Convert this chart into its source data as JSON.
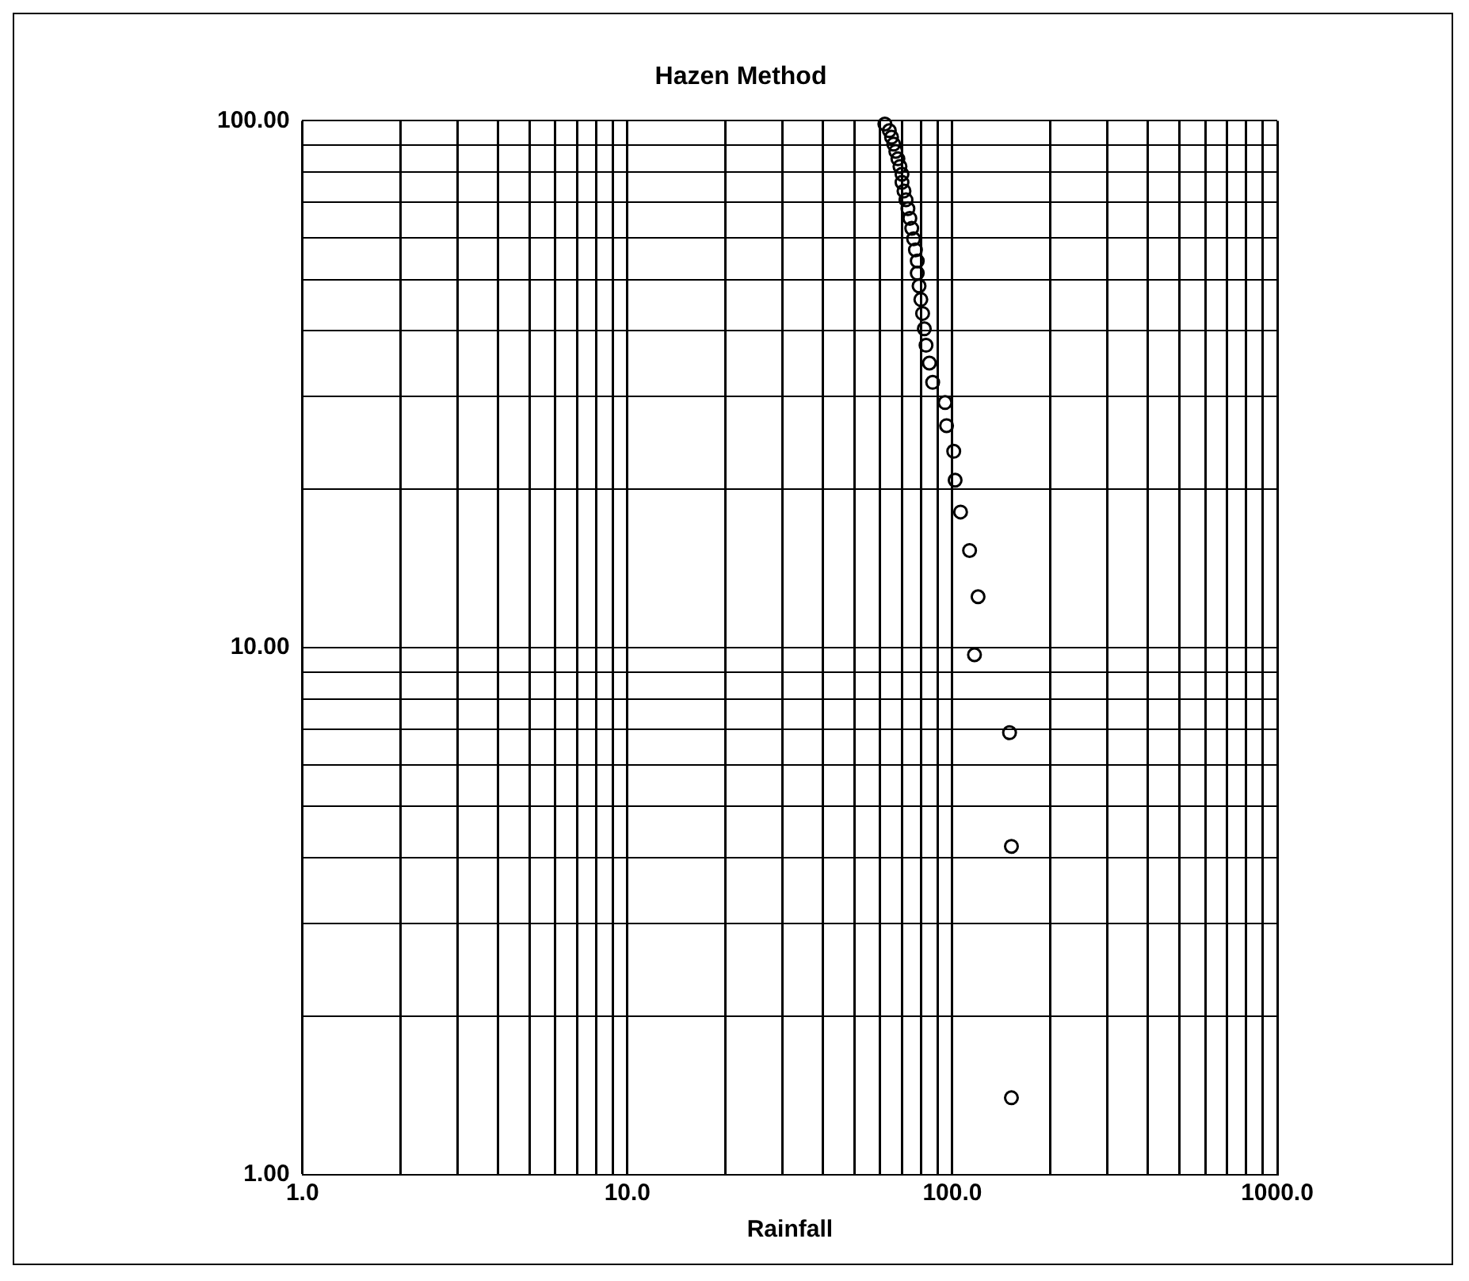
{
  "chart_data": {
    "type": "scatter",
    "title": "Hazen Method",
    "xlabel": "Rainfall",
    "log": "xy",
    "grid": true,
    "legend": false,
    "marker": "circle",
    "xlim": [
      1,
      1000
    ],
    "xticks": [
      {
        "value": 1,
        "label": "1.0"
      },
      {
        "value": 2,
        "label": null
      },
      {
        "value": 3,
        "label": null
      },
      {
        "value": 4,
        "label": null
      },
      {
        "value": 5,
        "label": null
      },
      {
        "value": 6,
        "label": null
      },
      {
        "value": 7,
        "label": null
      },
      {
        "value": 8,
        "label": null
      },
      {
        "value": 9,
        "label": null
      },
      {
        "value": 10,
        "label": "10.0"
      },
      {
        "value": 20,
        "label": null
      },
      {
        "value": 30,
        "label": null
      },
      {
        "value": 40,
        "label": null
      },
      {
        "value": 50,
        "label": null
      },
      {
        "value": 60,
        "label": null
      },
      {
        "value": 70,
        "label": null
      },
      {
        "value": 80,
        "label": null
      },
      {
        "value": 90,
        "label": null
      },
      {
        "value": 100,
        "label": "100.0"
      },
      {
        "value": 200,
        "label": null
      },
      {
        "value": 300,
        "label": null
      },
      {
        "value": 400,
        "label": null
      },
      {
        "value": 500,
        "label": null
      },
      {
        "value": 600,
        "label": null
      },
      {
        "value": 700,
        "label": null
      },
      {
        "value": 800,
        "label": null
      },
      {
        "value": 900,
        "label": null
      },
      {
        "value": 1000,
        "label": "1000.0"
      }
    ],
    "ylim": [
      1,
      100
    ],
    "yticks": [
      {
        "value": 1,
        "label": "1.00"
      },
      {
        "value": 2,
        "label": null
      },
      {
        "value": 3,
        "label": null
      },
      {
        "value": 4,
        "label": null
      },
      {
        "value": 5,
        "label": null
      },
      {
        "value": 6,
        "label": null
      },
      {
        "value": 7,
        "label": null
      },
      {
        "value": 8,
        "label": null
      },
      {
        "value": 9,
        "label": null
      },
      {
        "value": 10,
        "label": "10.00"
      },
      {
        "value": 20,
        "label": null
      },
      {
        "value": 30,
        "label": null
      },
      {
        "value": 40,
        "label": null
      },
      {
        "value": 50,
        "label": null
      },
      {
        "value": 60,
        "label": null
      },
      {
        "value": 70,
        "label": null
      },
      {
        "value": 80,
        "label": null
      },
      {
        "value": 90,
        "label": null
      },
      {
        "value": 100,
        "label": "100.00"
      }
    ],
    "series": [
      {
        "color": "#000000",
        "x": [
          152,
          152,
          150,
          117,
          120,
          113,
          106,
          102,
          101,
          96,
          95,
          87,
          85,
          83,
          82,
          81,
          80,
          79,
          78,
          78,
          77,
          76,
          75,
          74,
          73,
          72,
          71,
          70,
          70,
          69,
          68,
          67,
          66,
          65,
          64,
          62
        ],
        "values": [
          1.4,
          4.2,
          6.9,
          9.7,
          12.5,
          15.3,
          18.1,
          20.8,
          23.6,
          26.4,
          29.2,
          31.9,
          34.7,
          37.5,
          40.3,
          43.1,
          45.8,
          48.6,
          51.4,
          54.2,
          56.9,
          59.7,
          62.5,
          65.3,
          68.1,
          70.8,
          73.6,
          76.4,
          79.2,
          81.9,
          84.7,
          87.5,
          90.3,
          93.1,
          95.8,
          98.6
        ]
      }
    ]
  }
}
